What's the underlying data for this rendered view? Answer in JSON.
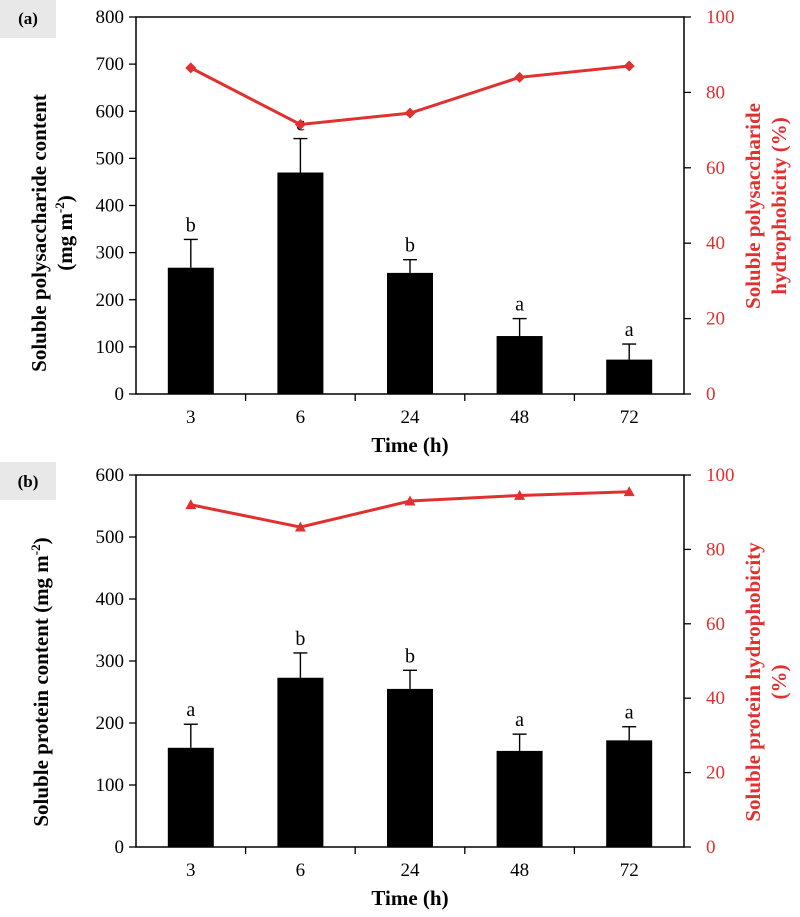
{
  "colors": {
    "bar": "#000000",
    "line": "#e03030",
    "label_bg": "#e8e8e8",
    "axis": "#000000"
  },
  "chart_data": [
    {
      "panel": "(a)",
      "type": "bar",
      "categories": [
        "3",
        "6",
        "24",
        "48",
        "72"
      ],
      "xlabel": "Time (h)",
      "ylabel_lines": [
        "Soluble polysaccharide content",
        "(mg m-2)"
      ],
      "ylabel_unit": "(mg m",
      "ylabel_sup": "-2",
      "ylabel_close": ")",
      "ylim": [
        0,
        800
      ],
      "yticks": [
        0,
        100,
        200,
        300,
        400,
        500,
        600,
        700,
        800
      ],
      "values": [
        268,
        470,
        257,
        123,
        73
      ],
      "errors": [
        60,
        72,
        28,
        37,
        33
      ],
      "significance": [
        "b",
        "c",
        "b",
        "a",
        "a"
      ],
      "secondary": {
        "type": "line",
        "name": "Soluble polysaccharide hydrophobicity (%)",
        "ylabel_lines": [
          "Soluble polysaccharide",
          "hydrophobicity (%)"
        ],
        "ylim": [
          0,
          100
        ],
        "yticks": [
          0,
          20,
          40,
          60,
          80,
          100
        ],
        "values": [
          86.5,
          71.5,
          74.5,
          84,
          87
        ],
        "marker": "diamond"
      }
    },
    {
      "panel": "(b)",
      "type": "bar",
      "categories": [
        "3",
        "6",
        "24",
        "48",
        "72"
      ],
      "xlabel": "Time (h)",
      "ylabel_lines": [
        "Soluble protein content (mg m-2)"
      ],
      "ylabel_unit": "Soluble protein content (mg m",
      "ylabel_sup": "-2",
      "ylabel_close": ")",
      "ylim": [
        0,
        600
      ],
      "yticks": [
        0,
        100,
        200,
        300,
        400,
        500,
        600
      ],
      "values": [
        160,
        273,
        255,
        155,
        172
      ],
      "errors": [
        38,
        40,
        30,
        27,
        22
      ],
      "significance": [
        "a",
        "b",
        "b",
        "a",
        "a"
      ],
      "secondary": {
        "type": "line",
        "name": "Soluble protein hydrophobicity (%)",
        "ylabel_lines": [
          "Soluble protein hydrophobicity",
          "(%)"
        ],
        "ylim": [
          0,
          100
        ],
        "yticks": [
          0,
          20,
          40,
          60,
          80,
          100
        ],
        "values": [
          92,
          86,
          93,
          94.5,
          95.5
        ],
        "marker": "triangle"
      }
    }
  ]
}
